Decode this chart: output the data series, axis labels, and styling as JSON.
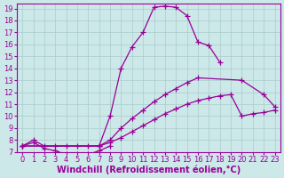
{
  "background_color": "#cce8e8",
  "plot_bg_color": "#cce8e8",
  "line_color": "#990099",
  "marker": "+",
  "markersize": 4,
  "linewidth": 0.9,
  "xlabel": "Windchill (Refroidissement éolien,°C)",
  "xlabel_fontsize": 7,
  "tick_fontsize": 6,
  "xlim": [
    -0.5,
    23.5
  ],
  "ylim": [
    7,
    19.4
  ],
  "yticks": [
    7,
    8,
    9,
    10,
    11,
    12,
    13,
    14,
    15,
    16,
    17,
    18,
    19
  ],
  "xticks": [
    0,
    1,
    2,
    3,
    4,
    5,
    6,
    7,
    8,
    9,
    10,
    11,
    12,
    13,
    14,
    15,
    16,
    17,
    18,
    19,
    20,
    21,
    22,
    23
  ],
  "grid_color": "#aacccc",
  "curves": [
    {
      "x": [
        0,
        1,
        2,
        3,
        4,
        5,
        6,
        7,
        8,
        9,
        10,
        11,
        12,
        13,
        14,
        15,
        16,
        17,
        18
      ],
      "y": [
        7.5,
        8.0,
        7.5,
        7.5,
        7.5,
        7.5,
        7.5,
        7.5,
        10.0,
        14.0,
        15.8,
        17.0,
        19.1,
        19.2,
        19.1,
        18.4,
        16.2,
        15.9,
        14.5
      ]
    },
    {
      "x": [
        0,
        1,
        2,
        3,
        4,
        5,
        6,
        7,
        8
      ],
      "y": [
        7.5,
        7.8,
        7.3,
        7.1,
        6.8,
        6.8,
        6.8,
        7.1,
        7.5
      ]
    },
    {
      "x": [
        0,
        7,
        8,
        9,
        10,
        11,
        12,
        13,
        14,
        15,
        16,
        20,
        22,
        23
      ],
      "y": [
        7.5,
        7.5,
        8.0,
        9.0,
        9.8,
        10.5,
        11.2,
        11.8,
        12.3,
        12.8,
        13.2,
        13.0,
        11.8,
        10.8
      ]
    },
    {
      "x": [
        0,
        7,
        8,
        9,
        10,
        11,
        12,
        13,
        14,
        15,
        16,
        17,
        18,
        19,
        20,
        21,
        22,
        23
      ],
      "y": [
        7.5,
        7.5,
        7.8,
        8.2,
        8.7,
        9.2,
        9.7,
        10.2,
        10.6,
        11.0,
        11.3,
        11.5,
        11.7,
        11.8,
        10.0,
        10.2,
        10.3,
        10.5
      ]
    }
  ]
}
